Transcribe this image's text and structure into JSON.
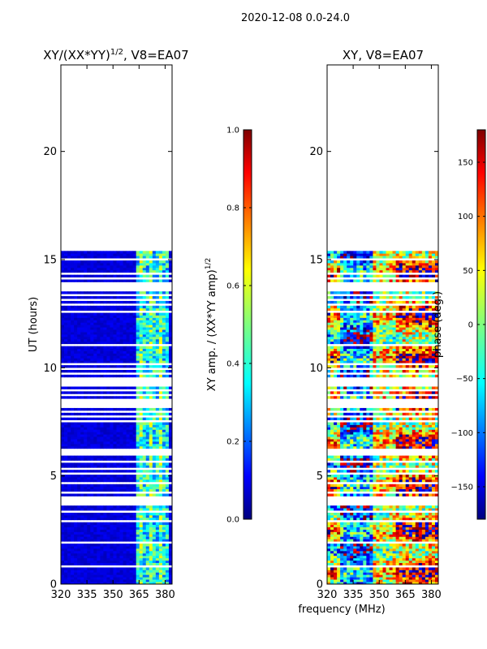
{
  "figure": {
    "suptitle": "2020-12-08 0.0-24.0",
    "xlabel": "frequency (MHz)"
  },
  "chart_data": [
    {
      "type": "heatmap",
      "title": "XY/(XX*YY)^{1/2}, V8=EA07",
      "title_main": "XY/(XX*YY)",
      "title_exp": "1/2",
      "title_tail": ", V8=EA07",
      "xlabel": "",
      "ylabel": "UT (hours)",
      "xlim": [
        320,
        384
      ],
      "ylim": [
        0,
        24
      ],
      "xticks": [
        320,
        335,
        350,
        365,
        380
      ],
      "yticks": [
        0,
        5,
        10,
        15,
        20
      ],
      "data_extent_hours": [
        0,
        15.4
      ],
      "colorbar": {
        "label_main": "XY amp. / (XX*YY amp)",
        "label_exp": "1/2",
        "range": [
          0.0,
          1.0
        ],
        "ticks": [
          "0.0",
          "0.2",
          "0.4",
          "0.6",
          "0.8",
          "1.0"
        ],
        "tick_values": [
          0.0,
          0.2,
          0.4,
          0.6,
          0.8,
          1.0
        ]
      }
    },
    {
      "type": "heatmap",
      "title": "XY, V8=EA07",
      "xlabel": "",
      "ylabel": "",
      "xlim": [
        320,
        384
      ],
      "ylim": [
        0,
        24
      ],
      "xticks": [
        320,
        335,
        350,
        365,
        380
      ],
      "yticks": [
        0,
        5,
        10,
        15,
        20
      ],
      "data_extent_hours": [
        0,
        15.4
      ],
      "colorbar": {
        "label": "phase (deg.)",
        "range": [
          -180,
          180
        ],
        "ticks": [
          "150",
          "100",
          "50",
          "0",
          "−50",
          "−100",
          "−150"
        ],
        "tick_values": [
          150,
          100,
          50,
          0,
          -50,
          -100,
          -150
        ]
      }
    }
  ],
  "flagged_hours": [
    0.8,
    1.9,
    2.9,
    3.3,
    3.6,
    3.8,
    4.0,
    4.2,
    4.6,
    5.1,
    5.3,
    5.6,
    6.0,
    6.1,
    7.5,
    7.7,
    7.9,
    8.1,
    8.3,
    8.5,
    8.7,
    8.9,
    9.1,
    9.3,
    9.5,
    9.7,
    9.9,
    10.1,
    11.0,
    12.5,
    12.9,
    13.1,
    13.3,
    13.5,
    13.7,
    13.9,
    14.1,
    14.3,
    15.0
  ],
  "colors": {
    "jet": [
      "#00007f",
      "#0000ff",
      "#007fff",
      "#00ffff",
      "#7fff7f",
      "#ffff00",
      "#ff7f00",
      "#ff0000",
      "#7f0000"
    ]
  }
}
